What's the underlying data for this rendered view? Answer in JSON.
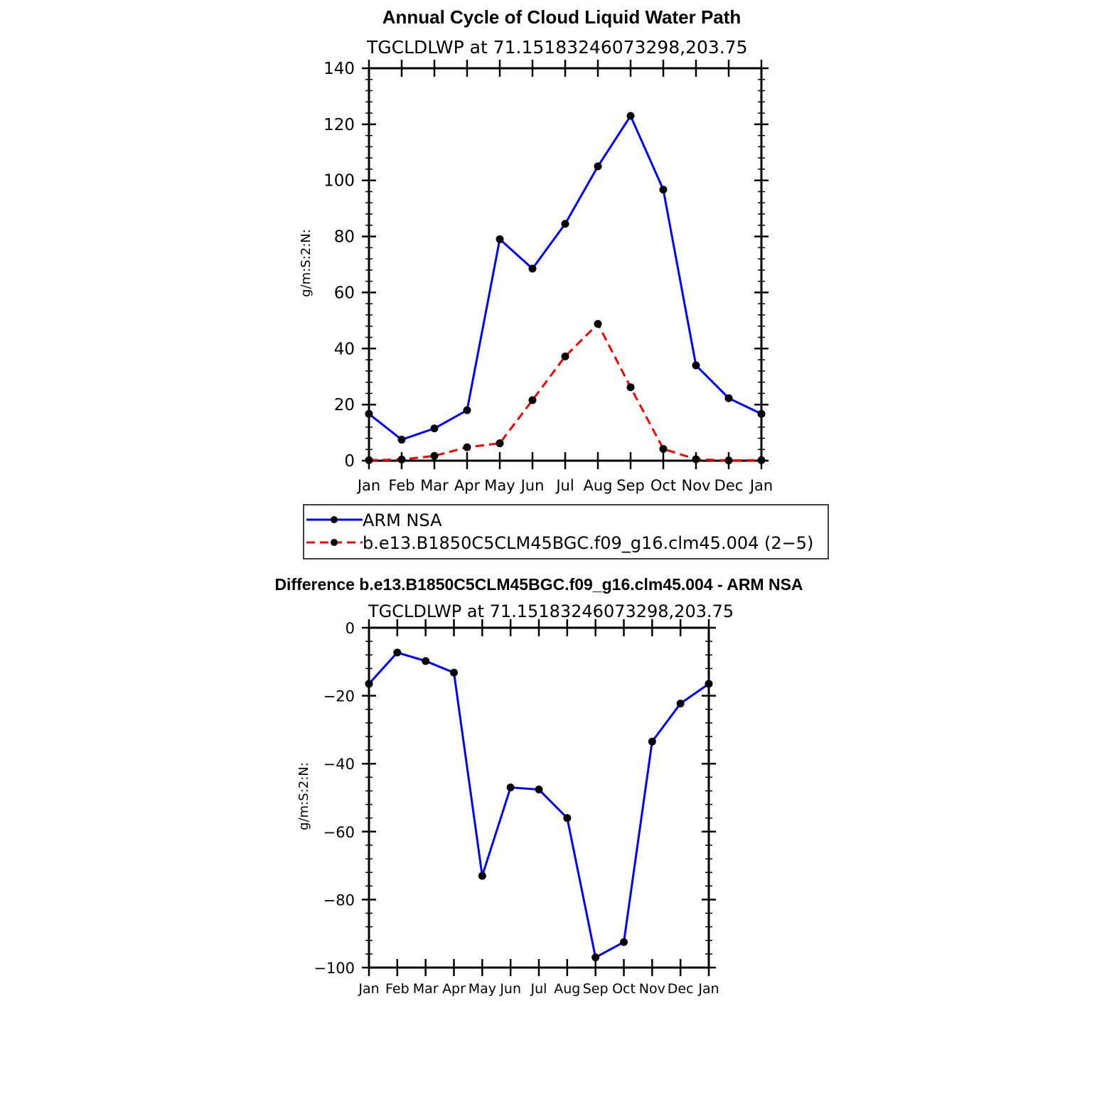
{
  "chart_data": [
    {
      "type": "line",
      "title": "Annual Cycle of Cloud Liquid Water Path",
      "subtitle": "TGCLDLWP  at  71.15183246073298,203.75",
      "xlabel": "",
      "ylabel": "g/m:S:2:N:",
      "categories": [
        "Jan",
        "Feb",
        "Mar",
        "Apr",
        "May",
        "Jun",
        "Jul",
        "Aug",
        "Sep",
        "Oct",
        "Nov",
        "Dec",
        "Jan"
      ],
      "ylim": [
        0,
        140
      ],
      "yticks": [
        0,
        20,
        40,
        60,
        80,
        100,
        120,
        140
      ],
      "series": [
        {
          "name": "ARM  NSA",
          "color": "#0000ff",
          "dash": "solid",
          "values": [
            16.7,
            7.5,
            11.5,
            18,
            79,
            68.5,
            84.5,
            105,
            123,
            96.7,
            34,
            22.3,
            16.7
          ]
        },
        {
          "name": "b.e13.B1850C5CLM45BGC.f09_g16.clm45.004  (2−5)",
          "color": "#ff0000",
          "dash": "dashed",
          "values": [
            0.2,
            0.4,
            1.7,
            4.8,
            6.2,
            21.6,
            37.2,
            48.8,
            26.2,
            4.2,
            0.5,
            0.1,
            0.2
          ]
        }
      ]
    },
    {
      "type": "line",
      "title": "Difference b.e13.B1850C5CLM45BGC.f09_g16.clm45.004 - ARM NSA",
      "subtitle": "TGCLDLWP  at  71.15183246073298,203.75",
      "xlabel": "",
      "ylabel": "g/m:S:2:N:",
      "categories": [
        "Jan",
        "Feb",
        "Mar",
        "Apr",
        "May",
        "Jun",
        "Jul",
        "Aug",
        "Sep",
        "Oct",
        "Nov",
        "Dec",
        "Jan"
      ],
      "ylim": [
        -100,
        0
      ],
      "yticks": [
        0,
        -20,
        -40,
        -60,
        -80,
        -100
      ],
      "series": [
        {
          "name": "Difference",
          "color": "#0000ff",
          "dash": "solid",
          "values": [
            -16.5,
            -7.3,
            -9.8,
            -13.2,
            -73,
            -47,
            -47.6,
            -56,
            -97,
            -92.5,
            -33.5,
            -22.3,
            -16.5
          ]
        }
      ]
    }
  ]
}
